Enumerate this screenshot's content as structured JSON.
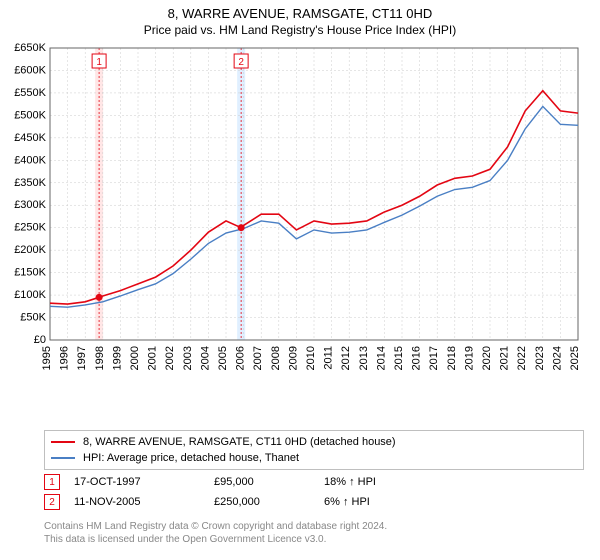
{
  "title_line1": "8, WARRE AVENUE, RAMSGATE, CT11 0HD",
  "title_line2": "Price paid vs. HM Land Registry's House Price Index (HPI)",
  "chart": {
    "type": "line",
    "x_years": [
      1995,
      1996,
      1997,
      1998,
      1999,
      2000,
      2001,
      2002,
      2003,
      2004,
      2005,
      2006,
      2007,
      2008,
      2009,
      2010,
      2011,
      2012,
      2013,
      2014,
      2015,
      2016,
      2017,
      2018,
      2019,
      2020,
      2021,
      2022,
      2023,
      2024,
      2025
    ],
    "ylim": [
      0,
      650000
    ],
    "ytick_step": 50000,
    "ytick_labels": [
      "£0",
      "£50K",
      "£100K",
      "£150K",
      "£200K",
      "£250K",
      "£300K",
      "£350K",
      "£400K",
      "£450K",
      "£500K",
      "£550K",
      "£600K",
      "£650K"
    ],
    "background_color": "#ffffff",
    "grid_color": "#cccccc",
    "grid_dash": "2,2",
    "axis_font_size": 11,
    "series": [
      {
        "name": "8, WARRE AVENUE, RAMSGATE, CT11 0HD (detached house)",
        "color": "#e30613",
        "width": 1.6,
        "points": [
          [
            1995,
            82000
          ],
          [
            1996,
            80000
          ],
          [
            1997,
            85000
          ],
          [
            1997.79,
            95000
          ],
          [
            1998,
            98000
          ],
          [
            1999,
            110000
          ],
          [
            2000,
            125000
          ],
          [
            2001,
            140000
          ],
          [
            2002,
            165000
          ],
          [
            2003,
            200000
          ],
          [
            2004,
            240000
          ],
          [
            2005,
            265000
          ],
          [
            2005.86,
            250000
          ],
          [
            2006,
            255000
          ],
          [
            2007,
            280000
          ],
          [
            2008,
            280000
          ],
          [
            2009,
            245000
          ],
          [
            2010,
            265000
          ],
          [
            2011,
            258000
          ],
          [
            2012,
            260000
          ],
          [
            2013,
            265000
          ],
          [
            2014,
            285000
          ],
          [
            2015,
            300000
          ],
          [
            2016,
            320000
          ],
          [
            2017,
            345000
          ],
          [
            2018,
            360000
          ],
          [
            2019,
            365000
          ],
          [
            2020,
            380000
          ],
          [
            2021,
            430000
          ],
          [
            2022,
            510000
          ],
          [
            2023,
            555000
          ],
          [
            2024,
            510000
          ],
          [
            2025,
            505000
          ]
        ]
      },
      {
        "name": "HPI: Average price, detached house, Thanet",
        "color": "#4a7fc4",
        "width": 1.4,
        "points": [
          [
            1995,
            75000
          ],
          [
            1996,
            73000
          ],
          [
            1997,
            78000
          ],
          [
            1998,
            85000
          ],
          [
            1999,
            98000
          ],
          [
            2000,
            112000
          ],
          [
            2001,
            125000
          ],
          [
            2002,
            148000
          ],
          [
            2003,
            180000
          ],
          [
            2004,
            215000
          ],
          [
            2005,
            238000
          ],
          [
            2006,
            248000
          ],
          [
            2007,
            265000
          ],
          [
            2008,
            260000
          ],
          [
            2009,
            225000
          ],
          [
            2010,
            245000
          ],
          [
            2011,
            238000
          ],
          [
            2012,
            240000
          ],
          [
            2013,
            245000
          ],
          [
            2014,
            262000
          ],
          [
            2015,
            278000
          ],
          [
            2016,
            298000
          ],
          [
            2017,
            320000
          ],
          [
            2018,
            335000
          ],
          [
            2019,
            340000
          ],
          [
            2020,
            355000
          ],
          [
            2021,
            400000
          ],
          [
            2022,
            470000
          ],
          [
            2023,
            520000
          ],
          [
            2024,
            480000
          ],
          [
            2025,
            478000
          ]
        ]
      }
    ],
    "sale_markers": [
      {
        "n": "1",
        "year": 1997.79,
        "value": 95000,
        "color": "#e30613",
        "band_color": "#ffd6d6"
      },
      {
        "n": "2",
        "year": 2005.86,
        "value": 250000,
        "color": "#e30613",
        "band_color": "#cce5ff"
      }
    ]
  },
  "legend": {
    "items": [
      {
        "color": "#e30613",
        "label": "8, WARRE AVENUE, RAMSGATE, CT11 0HD (detached house)"
      },
      {
        "color": "#4a7fc4",
        "label": "HPI: Average price, detached house, Thanet"
      }
    ]
  },
  "sales": [
    {
      "n": "1",
      "color": "#e30613",
      "date": "17-OCT-1997",
      "price": "£95,000",
      "delta": "18% ↑ HPI"
    },
    {
      "n": "2",
      "color": "#e30613",
      "date": "11-NOV-2005",
      "price": "£250,000",
      "delta": "6% ↑ HPI"
    }
  ],
  "attribution_line1": "Contains HM Land Registry data © Crown copyright and database right 2024.",
  "attribution_line2": "This data is licensed under the Open Government Licence v3.0."
}
